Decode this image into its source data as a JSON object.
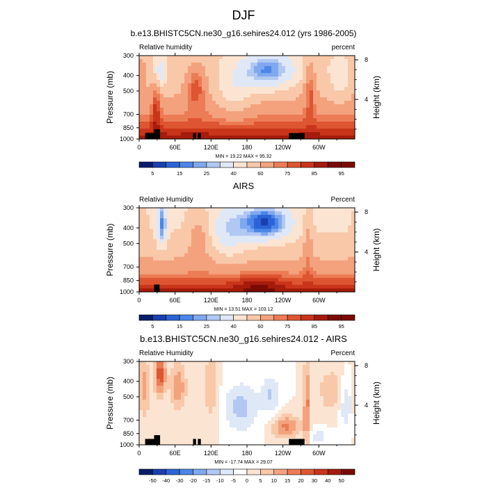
{
  "figure": {
    "title": "DJF"
  },
  "colors": {
    "rh_levels": [
      "#081d6b",
      "#1a3fb0",
      "#2b64d6",
      "#4c86e8",
      "#7fa8ee",
      "#b0c8f2",
      "#dfe8f7",
      "#fbe4d2",
      "#f8c8a9",
      "#f3a27d",
      "#ec7c55",
      "#de5531",
      "#c9351a",
      "#a51b0c",
      "#7a0b04"
    ],
    "diff_levels": [
      "#081d6b",
      "#1a3fb0",
      "#2b64d6",
      "#4c86e8",
      "#7fa8ee",
      "#b0c8f2",
      "#dfe8f7",
      "#ffffff",
      "#fbe4d2",
      "#f8c8a9",
      "#f3a27d",
      "#ec7c55",
      "#de5531",
      "#c9351a",
      "#a51b0c",
      "#7a0b04"
    ],
    "terrain": "#000000"
  },
  "chart_data": [
    {
      "type": "heatmap",
      "title": "b.e13.BHISTC5CN.ne30_g16.sehires24.012 (yrs 1986-2005)",
      "left_label": "Relative humidity",
      "right_label": "percent",
      "ylabel": "Pressure (mb)",
      "ylabel_right": "Height (km)",
      "x_ticks": [
        "0",
        "60E",
        "120E",
        "180",
        "120W",
        "60W"
      ],
      "x_tick_values": [
        0,
        60,
        120,
        180,
        240,
        300
      ],
      "xlim": [
        0,
        360
      ],
      "y_ticks": [
        "300",
        "400",
        "500",
        "700",
        "850",
        "1000"
      ],
      "y_tick_values": [
        300,
        400,
        500,
        700,
        850,
        1000
      ],
      "y_scale": "log",
      "ylim": [
        1000,
        300
      ],
      "height_ticks": [
        "8",
        "4"
      ],
      "height_tick_values": [
        8,
        4
      ],
      "min_max_text": "MIN = 19.22 MAX = 95.32",
      "colorbar_labels": [
        "5",
        "15",
        "25",
        "40",
        "60",
        "75",
        "85",
        "95"
      ],
      "colorbar_label_boxes": [
        1,
        3,
        5,
        7,
        9,
        11,
        13,
        15
      ],
      "colorbar_boxes": 16,
      "field": "model",
      "terrain_blocks": [
        [
          10,
          25,
          1000,
          918
        ],
        [
          25,
          35,
          1000,
          870
        ],
        [
          90,
          95,
          1000,
          918
        ],
        [
          98,
          103,
          1000,
          918
        ],
        [
          250,
          276,
          1000,
          918
        ]
      ]
    },
    {
      "type": "heatmap",
      "title": "AIRS",
      "left_label": "Relative Humidity",
      "right_label": "Percent",
      "ylabel": "Pressure (mb)",
      "ylabel_right": "Height (km)",
      "x_ticks": [
        "0",
        "60E",
        "120E",
        "180",
        "120W",
        "60W"
      ],
      "x_tick_values": [
        0,
        60,
        120,
        180,
        240,
        300
      ],
      "xlim": [
        0,
        360
      ],
      "y_ticks": [
        "300",
        "400",
        "500",
        "700",
        "850",
        "1000"
      ],
      "y_tick_values": [
        300,
        400,
        500,
        700,
        850,
        1000
      ],
      "y_scale": "log",
      "ylim": [
        1000,
        300
      ],
      "height_ticks": [
        "8",
        "4"
      ],
      "height_tick_values": [
        8,
        4
      ],
      "min_max_text": "MIN = 13.51 MAX = 103.12",
      "colorbar_labels": [
        "5",
        "15",
        "25",
        "40",
        "60",
        "75",
        "85",
        "95"
      ],
      "colorbar_label_boxes": [
        1,
        3,
        5,
        7,
        9,
        11,
        13,
        15
      ],
      "colorbar_boxes": 16,
      "field": "airs",
      "terrain_blocks": [
        [
          25,
          34,
          1000,
          900
        ]
      ]
    },
    {
      "type": "heatmap",
      "title": "b.e13.BHISTC5CN.ne30_g16.sehires24.012 - AIRS",
      "left_label": "Relative Humidity",
      "right_label": "Percent",
      "ylabel": "Pressure (mb)",
      "ylabel_right": "Height (km)",
      "x_ticks": [
        "0",
        "60E",
        "120E",
        "180",
        "120W",
        "60W"
      ],
      "x_tick_values": [
        0,
        60,
        120,
        180,
        240,
        300
      ],
      "xlim": [
        0,
        360
      ],
      "y_ticks": [
        "300",
        "400",
        "500",
        "700",
        "850",
        "1000"
      ],
      "y_tick_values": [
        300,
        400,
        500,
        700,
        850,
        1000
      ],
      "y_scale": "log",
      "ylim": [
        1000,
        300
      ],
      "height_ticks": [
        "8",
        "4"
      ],
      "height_tick_values": [
        8,
        4
      ],
      "min_max_text": "MIN = -17.74 MAX = 29.07",
      "colorbar_labels": [
        "-50",
        "-40",
        "-30",
        "-20",
        "-15",
        "-10",
        "-5",
        "0",
        "5",
        "10",
        "15",
        "20",
        "30",
        "40",
        "50"
      ],
      "colorbar_label_boxes": [
        1,
        2,
        3,
        4,
        5,
        6,
        7,
        8,
        9,
        10,
        11,
        12,
        13,
        14,
        15
      ],
      "colorbar_boxes": 16,
      "field": "diff",
      "terrain_blocks": [
        [
          10,
          25,
          1000,
          918
        ],
        [
          25,
          35,
          1000,
          870
        ],
        [
          90,
          95,
          1000,
          918
        ],
        [
          98,
          103,
          1000,
          918
        ],
        [
          250,
          276,
          1000,
          918
        ]
      ]
    }
  ]
}
